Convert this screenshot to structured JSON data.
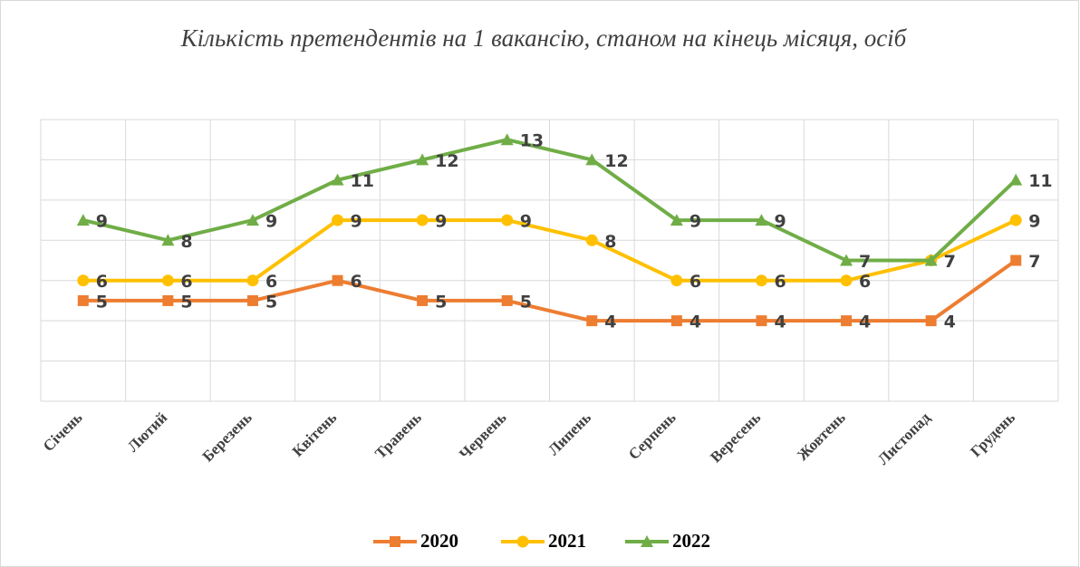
{
  "chart_data": {
    "type": "line",
    "title": "Кількість претендентів на 1 вакансію, станом на кінець місяця, осіб",
    "categories": [
      "Січень",
      "Лютий",
      "Березень",
      "Квітень",
      "Травень",
      "Червень",
      "Липень",
      "Серпень",
      "Вересень",
      "Жовтень",
      "Листопад",
      "Грудень"
    ],
    "series": [
      {
        "name": "2020",
        "color": "#ED7D31",
        "marker": "square",
        "values": [
          5,
          5,
          5,
          6,
          5,
          5,
          4,
          4,
          4,
          4,
          4,
          7
        ]
      },
      {
        "name": "2021",
        "color": "#FFC000",
        "marker": "circle",
        "values": [
          6,
          6,
          6,
          9,
          9,
          9,
          8,
          6,
          6,
          6,
          7,
          9
        ]
      },
      {
        "name": "2022",
        "color": "#70AD47",
        "marker": "triangle",
        "values": [
          9,
          8,
          9,
          11,
          12,
          13,
          12,
          9,
          9,
          7,
          7,
          11
        ]
      }
    ],
    "ylim": [
      0,
      14
    ],
    "yticks": [
      0,
      2,
      4,
      6,
      8,
      10,
      12,
      14
    ],
    "grid": true,
    "legend": "bottom"
  }
}
